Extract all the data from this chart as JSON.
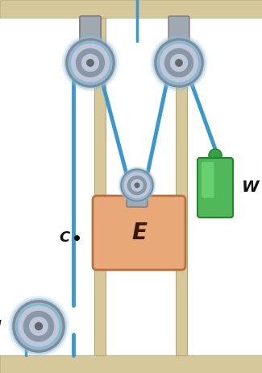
{
  "bg_color": "#f8f4ec",
  "wall_color": "#d6c89a",
  "wall_stroke": "#b8a870",
  "pulley_gray": "#9898a0",
  "pulley_light": "#c0c8d8",
  "pulley_rim": "#707880",
  "pulley_blue_rim": "#88c0e0",
  "rope_color": "#3898d0",
  "elevator_fill": "#e8a878",
  "elevator_stroke": "#b87040",
  "weight_fill": "#50b858",
  "weight_stroke": "#208828",
  "weight_top": "#38a048",
  "label_E": "E",
  "label_W": "W",
  "label_C": "C",
  "label_M": "M",
  "floor_color": "#d6c89a",
  "ceiling_color": "#d6c89a",
  "bracket_color": "#a0a8b0",
  "bracket_dark": "#787880"
}
